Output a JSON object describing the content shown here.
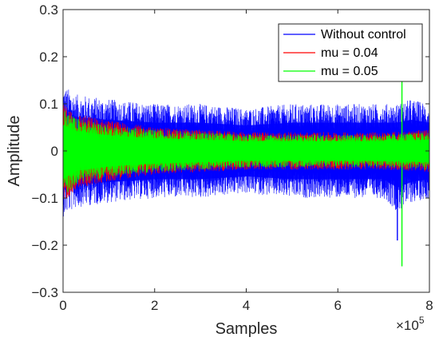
{
  "chart_data": {
    "type": "line",
    "title": "",
    "xlabel": "Samples",
    "ylabel": "Amplitude",
    "x_exponent_label": "×10",
    "x_exponent_power": "5",
    "xlim": [
      0,
      8
    ],
    "ylim": [
      -0.3,
      0.3
    ],
    "xticks": [
      0,
      2,
      4,
      6,
      8
    ],
    "xtick_labels": [
      "0",
      "2",
      "4",
      "6",
      "8"
    ],
    "yticks": [
      -0.3,
      -0.2,
      -0.1,
      0,
      0.1,
      0.2,
      0.3
    ],
    "ytick_labels": [
      "−0.3",
      "−0.2",
      "−0.1",
      "0",
      "0.1",
      "0.2",
      "0.3"
    ],
    "grid": false,
    "legend_position": "top-right",
    "series": [
      {
        "name": "Without control",
        "color": "#0000ff",
        "envelope_x": [
          0,
          0.3,
          1,
          2,
          3,
          4,
          5,
          6,
          7,
          7.3,
          7.6,
          8
        ],
        "envelope_upper": [
          0.14,
          0.12,
          0.11,
          0.1,
          0.1,
          0.09,
          0.1,
          0.1,
          0.1,
          0.1,
          0.11,
          0.1
        ],
        "envelope_lower": [
          -0.14,
          -0.12,
          -0.11,
          -0.1,
          -0.1,
          -0.09,
          -0.1,
          -0.1,
          -0.1,
          -0.13,
          -0.11,
          -0.1
        ],
        "spikes": [
          {
            "x": 7.3,
            "y": -0.19
          }
        ]
      },
      {
        "name": "mu = 0.04",
        "color": "#ff0000",
        "envelope_x": [
          0,
          0.3,
          1,
          2,
          3,
          4,
          5,
          6,
          7,
          8
        ],
        "envelope_upper": [
          0.1,
          0.08,
          0.065,
          0.05,
          0.045,
          0.04,
          0.04,
          0.04,
          0.04,
          0.045
        ],
        "envelope_lower": [
          -0.11,
          -0.08,
          -0.065,
          -0.05,
          -0.045,
          -0.04,
          -0.04,
          -0.04,
          -0.04,
          -0.045
        ],
        "spikes": []
      },
      {
        "name": "mu = 0.05",
        "color": "#00ff00",
        "envelope_x": [
          0,
          0.3,
          1,
          2,
          3,
          4,
          5,
          6,
          7,
          8
        ],
        "envelope_upper": [
          0.09,
          0.07,
          0.055,
          0.045,
          0.04,
          0.035,
          0.035,
          0.035,
          0.035,
          0.04
        ],
        "envelope_lower": [
          -0.1,
          -0.07,
          -0.055,
          -0.045,
          -0.04,
          -0.035,
          -0.035,
          -0.035,
          -0.035,
          -0.04
        ],
        "spikes": [
          {
            "x": 7.4,
            "y": 0.16
          },
          {
            "x": 7.4,
            "y": -0.245
          }
        ]
      }
    ]
  }
}
